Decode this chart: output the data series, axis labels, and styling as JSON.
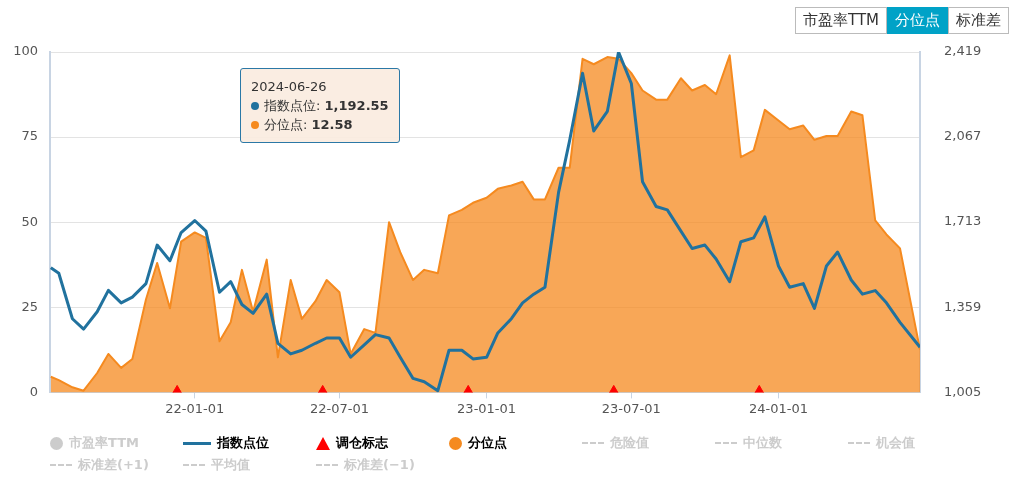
{
  "chart_data": {
    "type": "line",
    "x": [
      "2021-07-05",
      "2021-07-15",
      "2021-08-01",
      "2021-08-15",
      "2021-09-01",
      "2021-09-15",
      "2021-10-01",
      "2021-10-15",
      "2021-11-01",
      "2021-11-15",
      "2021-12-01",
      "2021-12-15",
      "2022-01-01",
      "2022-01-15",
      "2022-02-01",
      "2022-02-15",
      "2022-03-01",
      "2022-03-15",
      "2022-04-01",
      "2022-04-15",
      "2022-05-01",
      "2022-05-15",
      "2022-06-01",
      "2022-06-15",
      "2022-07-01",
      "2022-07-15",
      "2022-08-01",
      "2022-08-15",
      "2022-09-01",
      "2022-09-15",
      "2022-10-01",
      "2022-10-15",
      "2022-11-01",
      "2022-11-15",
      "2022-12-01",
      "2022-12-15",
      "2023-01-01",
      "2023-01-15",
      "2023-02-01",
      "2023-02-15",
      "2023-03-01",
      "2023-03-15",
      "2023-04-01",
      "2023-04-15",
      "2023-05-01",
      "2023-05-15",
      "2023-06-01",
      "2023-06-15",
      "2023-07-01",
      "2023-07-15",
      "2023-08-01",
      "2023-08-15",
      "2023-09-01",
      "2023-09-15",
      "2023-10-01",
      "2023-10-15",
      "2023-11-01",
      "2023-11-15",
      "2023-12-01",
      "2023-12-15",
      "2024-01-01",
      "2024-01-15",
      "2024-02-01",
      "2024-02-15",
      "2024-03-01",
      "2024-03-15",
      "2024-04-01",
      "2024-04-15",
      "2024-05-01",
      "2024-05-15",
      "2024-06-01",
      "2024-06-26"
    ],
    "series": [
      {
        "name": "市盈率TTM",
        "type": "area",
        "color": "#cccccc",
        "values": [
          null,
          null,
          null,
          null,
          null,
          null,
          null,
          null,
          null,
          null,
          null,
          null,
          null,
          null,
          null,
          null,
          null,
          null,
          null,
          null,
          null,
          null,
          null,
          null,
          null,
          null,
          null,
          null,
          null,
          null,
          null,
          null,
          null,
          null,
          null,
          null,
          null,
          null,
          null,
          null,
          null,
          null,
          null,
          null,
          null,
          null,
          null,
          null,
          null,
          null,
          null,
          null,
          null,
          null,
          null,
          null,
          null,
          null,
          null,
          null,
          null,
          null,
          null,
          null,
          null,
          null,
          null,
          null,
          null,
          null,
          null,
          null
        ]
      },
      {
        "name": "指数点位",
        "axis": "y2",
        "color": "#21729e",
        "values": [
          1523,
          1500,
          1311,
          1268,
          1340,
          1429,
          1377,
          1401,
          1457,
          1617,
          1552,
          1669,
          1719,
          1675,
          1421,
          1465,
          1370,
          1333,
          1413,
          1209,
          1165,
          1180,
          1209,
          1231,
          1231,
          1151,
          1202,
          1245,
          1231,
          1151,
          1063,
          1049,
          1012,
          1180,
          1180,
          1144,
          1151,
          1252,
          1311,
          1377,
          1413,
          1442,
          1836,
          2054,
          2331,
          2091,
          2172,
          2419,
          2288,
          1880,
          1777,
          1763,
          1675,
          1603,
          1617,
          1559,
          1465,
          1631,
          1647,
          1734,
          1530,
          1442,
          1457,
          1354,
          1530,
          1588,
          1472,
          1413,
          1428,
          1377,
          1296,
          1192.55
        ]
      },
      {
        "name": "调仓标志",
        "type": "scatter",
        "marker": "triangle",
        "color": "#ff0000",
        "x": [
          "2021-12-10",
          "2022-06-10",
          "2022-12-09",
          "2023-06-09",
          "2023-12-08"
        ],
        "values": [
          0,
          0,
          0,
          0,
          0
        ]
      },
      {
        "name": "分位点",
        "type": "area",
        "color": "#f58a1f",
        "values": [
          4.6,
          3.6,
          1.5,
          0.5,
          5.7,
          11.3,
          7.2,
          9.8,
          27.3,
          38,
          24.7,
          44.3,
          47,
          45.4,
          15,
          20.6,
          36,
          23.7,
          39,
          10.3,
          33,
          21.6,
          26.8,
          33,
          29.4,
          11.3,
          18.6,
          17.5,
          50,
          41.2,
          33,
          36,
          35,
          52,
          53.6,
          55.7,
          57.2,
          59.8,
          60.8,
          61.9,
          56.7,
          56.7,
          66,
          66,
          98,
          96.4,
          98.5,
          98,
          93.8,
          88.7,
          86,
          86,
          92.3,
          88.7,
          90.3,
          87.6,
          99,
          69.1,
          71.1,
          83,
          79.9,
          77.3,
          78.4,
          74.2,
          75.3,
          75.3,
          82.5,
          81.4,
          50.5,
          46.4,
          42.3,
          12.58
        ]
      },
      {
        "name": "危险值",
        "line_style": "dashed",
        "color": "#cccccc",
        "values": [
          null,
          null,
          null,
          null,
          null,
          null,
          null,
          null,
          null,
          null,
          null,
          null,
          null,
          null,
          null,
          null,
          null,
          null,
          null,
          null,
          null,
          null,
          null,
          null,
          null,
          null,
          null,
          null,
          null,
          null,
          null,
          null,
          null,
          null,
          null,
          null,
          null,
          null,
          null,
          null,
          null,
          null,
          null,
          null,
          null,
          null,
          null,
          null,
          null,
          null,
          null,
          null,
          null,
          null,
          null,
          null,
          null,
          null,
          null,
          null,
          null,
          null,
          null,
          null,
          null,
          null,
          null,
          null,
          null,
          null,
          null,
          null
        ]
      },
      {
        "name": "中位数",
        "line_style": "dashed",
        "color": "#cccccc",
        "values": [
          null,
          null,
          null,
          null,
          null,
          null,
          null,
          null,
          null,
          null,
          null,
          null,
          null,
          null,
          null,
          null,
          null,
          null,
          null,
          null,
          null,
          null,
          null,
          null,
          null,
          null,
          null,
          null,
          null,
          null,
          null,
          null,
          null,
          null,
          null,
          null,
          null,
          null,
          null,
          null,
          null,
          null,
          null,
          null,
          null,
          null,
          null,
          null,
          null,
          null,
          null,
          null,
          null,
          null,
          null,
          null,
          null,
          null,
          null,
          null,
          null,
          null,
          null,
          null,
          null,
          null,
          null,
          null,
          null,
          null,
          null,
          null
        ]
      },
      {
        "name": "机会值",
        "line_style": "dashed",
        "color": "#cccccc",
        "values": [
          null,
          null,
          null,
          null,
          null,
          null,
          null,
          null,
          null,
          null,
          null,
          null,
          null,
          null,
          null,
          null,
          null,
          null,
          null,
          null,
          null,
          null,
          null,
          null,
          null,
          null,
          null,
          null,
          null,
          null,
          null,
          null,
          null,
          null,
          null,
          null,
          null,
          null,
          null,
          null,
          null,
          null,
          null,
          null,
          null,
          null,
          null,
          null,
          null,
          null,
          null,
          null,
          null,
          null,
          null,
          null,
          null,
          null,
          null,
          null,
          null,
          null,
          null,
          null,
          null,
          null,
          null,
          null,
          null,
          null,
          null,
          null
        ]
      },
      {
        "name": "标准差(+1)",
        "line_style": "dashed",
        "color": "#cccccc",
        "values": [
          null,
          null,
          null,
          null,
          null,
          null,
          null,
          null,
          null,
          null,
          null,
          null,
          null,
          null,
          null,
          null,
          null,
          null,
          null,
          null,
          null,
          null,
          null,
          null,
          null,
          null,
          null,
          null,
          null,
          null,
          null,
          null,
          null,
          null,
          null,
          null,
          null,
          null,
          null,
          null,
          null,
          null,
          null,
          null,
          null,
          null,
          null,
          null,
          null,
          null,
          null,
          null,
          null,
          null,
          null,
          null,
          null,
          null,
          null,
          null,
          null,
          null,
          null,
          null,
          null,
          null,
          null,
          null,
          null,
          null,
          null,
          null
        ]
      },
      {
        "name": "平均值",
        "line_style": "dashed",
        "color": "#cccccc",
        "values": [
          null,
          null,
          null,
          null,
          null,
          null,
          null,
          null,
          null,
          null,
          null,
          null,
          null,
          null,
          null,
          null,
          null,
          null,
          null,
          null,
          null,
          null,
          null,
          null,
          null,
          null,
          null,
          null,
          null,
          null,
          null,
          null,
          null,
          null,
          null,
          null,
          null,
          null,
          null,
          null,
          null,
          null,
          null,
          null,
          null,
          null,
          null,
          null,
          null,
          null,
          null,
          null,
          null,
          null,
          null,
          null,
          null,
          null,
          null,
          null,
          null,
          null,
          null,
          null,
          null,
          null,
          null,
          null,
          null,
          null,
          null,
          null
        ]
      },
      {
        "name": "标准差(−1)",
        "line_style": "dashed",
        "color": "#cccccc",
        "values": [
          null,
          null,
          null,
          null,
          null,
          null,
          null,
          null,
          null,
          null,
          null,
          null,
          null,
          null,
          null,
          null,
          null,
          null,
          null,
          null,
          null,
          null,
          null,
          null,
          null,
          null,
          null,
          null,
          null,
          null,
          null,
          null,
          null,
          null,
          null,
          null,
          null,
          null,
          null,
          null,
          null,
          null,
          null,
          null,
          null,
          null,
          null,
          null,
          null,
          null,
          null,
          null,
          null,
          null,
          null,
          null,
          null,
          null,
          null,
          null,
          null,
          null,
          null,
          null,
          null,
          null,
          null,
          null,
          null,
          null,
          null,
          null
        ]
      }
    ],
    "xlim": [
      "2021-07-04",
      "2024-06-26"
    ],
    "xticks": [
      {
        "value": "2022-01-01",
        "label": "22-01-01"
      },
      {
        "value": "2022-07-01",
        "label": "22-07-01"
      },
      {
        "value": "2023-01-01",
        "label": "23-01-01"
      },
      {
        "value": "2023-07-01",
        "label": "23-07-01"
      },
      {
        "value": "2024-01-01",
        "label": "24-01-01"
      }
    ],
    "ylim": [
      0,
      100
    ],
    "yticks": [
      0,
      25,
      50,
      75,
      100
    ],
    "y2lim": [
      1005,
      2419
    ],
    "y2ticks": [
      {
        "value": 1005,
        "label": "1,005"
      },
      {
        "value": 1359,
        "label": "1,359"
      },
      {
        "value": 1713,
        "label": "1,713"
      },
      {
        "value": 2067,
        "label": "2,067"
      },
      {
        "value": 2419,
        "label": "2,419"
      }
    ],
    "grid": "y",
    "legend": "bottom",
    "annotations": [
      "市盈率TTM",
      "分位点",
      "标准差",
      "2024-06-26",
      "指数点位: 1,192.55",
      "分位点: 12.58"
    ]
  }
}
